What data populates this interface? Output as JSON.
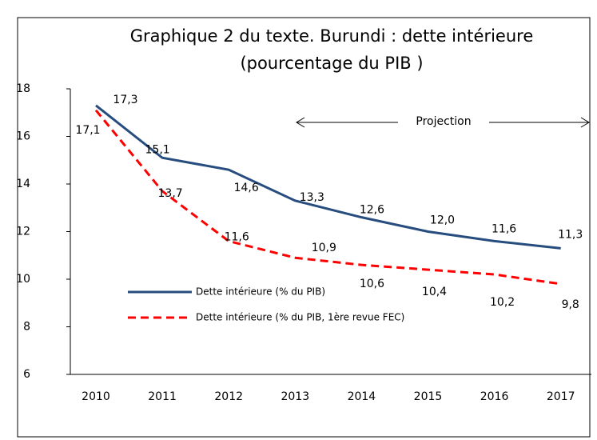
{
  "chart_data": {
    "type": "line",
    "title": "Graphique 2 du texte.  Burundi : dette intérieure",
    "subtitle": "(pourcentage du PIB )",
    "categories": [
      "2010",
      "2011",
      "2012",
      "2013",
      "2014",
      "2015",
      "2016",
      "2017"
    ],
    "series": [
      {
        "name": "Dette intérieure (% du PIB)",
        "color": "#264d7e",
        "dash": false,
        "values": [
          17.3,
          15.1,
          14.6,
          13.3,
          12.6,
          12.0,
          11.6,
          11.3
        ],
        "value_labels": [
          "17,3",
          "15,1",
          "14,6",
          "13,3",
          "12,6",
          "12,0",
          "11,6",
          "11,3"
        ]
      },
      {
        "name": "Dette intérieure (% du PIB, 1ère revue FEC)",
        "color": "#ff0000",
        "dash": true,
        "values": [
          17.1,
          13.7,
          11.6,
          10.9,
          10.6,
          10.4,
          10.2,
          9.8
        ],
        "value_labels": [
          "17,1",
          "13,7",
          "11,6",
          "10,9",
          "10,6",
          "10,4",
          "10,2",
          "9,8"
        ]
      }
    ],
    "annotation": "Projection",
    "ylim": [
      6,
      18
    ],
    "yticks": [
      6,
      8,
      10,
      12,
      14,
      16,
      18
    ],
    "grid": false,
    "legend": "lower left"
  }
}
